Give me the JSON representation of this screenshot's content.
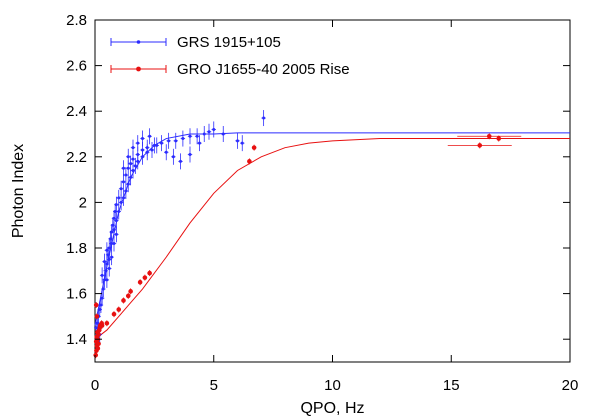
{
  "chart_data": {
    "type": "scatter",
    "xlabel": "QPO, Hz",
    "ylabel": "Photon Index",
    "xlim": [
      0,
      20
    ],
    "ylim": [
      1.3,
      2.8
    ],
    "x_ticks": [
      0,
      5,
      10,
      15,
      20
    ],
    "y_ticks": [
      1.4,
      1.6,
      1.8,
      2.0,
      2.2,
      2.4,
      2.6,
      2.8
    ],
    "x_tick_labels": [
      "0",
      "5",
      "10",
      "15",
      "20"
    ],
    "y_tick_labels": [
      "1.4",
      "1.6",
      "1.8",
      "2",
      "2.2",
      "2.4",
      "2.6",
      "2.8"
    ],
    "grid": false,
    "legend_position": "top-left",
    "series": [
      {
        "name": "GRS 1915+105",
        "color": "#2b2bff",
        "marker": "small-dot",
        "points": [
          [
            0.05,
            1.45
          ],
          [
            0.1,
            1.47
          ],
          [
            0.15,
            1.5
          ],
          [
            0.2,
            1.53
          ],
          [
            0.25,
            1.55
          ],
          [
            0.3,
            1.58
          ],
          [
            0.35,
            1.62
          ],
          [
            0.4,
            1.66
          ],
          [
            0.45,
            1.7
          ],
          [
            0.5,
            1.73
          ],
          [
            0.55,
            1.77
          ],
          [
            0.6,
            1.8
          ],
          [
            0.65,
            1.84
          ],
          [
            0.7,
            1.87
          ],
          [
            0.75,
            1.9
          ],
          [
            0.8,
            1.93
          ],
          [
            0.85,
            1.96
          ],
          [
            0.9,
            1.99
          ],
          [
            1.0,
            2.02
          ],
          [
            1.1,
            2.06
          ],
          [
            1.2,
            2.09
          ],
          [
            1.3,
            2.12
          ],
          [
            1.4,
            2.15
          ],
          [
            1.5,
            2.17
          ],
          [
            1.6,
            2.19
          ],
          [
            1.8,
            2.21
          ],
          [
            2.0,
            2.23
          ],
          [
            2.2,
            2.24
          ],
          [
            2.5,
            2.25
          ],
          [
            2.8,
            2.26
          ],
          [
            3.1,
            2.27
          ],
          [
            3.4,
            2.27
          ],
          [
            3.7,
            2.28
          ],
          [
            4.0,
            2.29
          ],
          [
            4.3,
            2.29
          ],
          [
            4.6,
            2.3
          ],
          [
            0.3,
            1.68
          ],
          [
            0.4,
            1.74
          ],
          [
            0.5,
            1.79
          ],
          [
            0.6,
            1.75
          ],
          [
            0.7,
            1.82
          ],
          [
            0.8,
            1.88
          ],
          [
            0.9,
            1.92
          ],
          [
            1.0,
            1.96
          ],
          [
            1.1,
            2.0
          ],
          [
            1.2,
            2.02
          ],
          [
            1.3,
            2.05
          ],
          [
            1.4,
            2.08
          ],
          [
            1.5,
            2.11
          ],
          [
            1.6,
            2.14
          ],
          [
            1.7,
            2.16
          ],
          [
            1.8,
            2.18
          ],
          [
            2.0,
            2.2
          ],
          [
            2.2,
            2.22
          ],
          [
            2.4,
            2.23
          ],
          [
            1.2,
            2.15
          ],
          [
            1.4,
            2.2
          ],
          [
            1.6,
            2.24
          ],
          [
            1.8,
            2.26
          ],
          [
            2.0,
            2.28
          ],
          [
            2.3,
            2.29
          ],
          [
            2.6,
            2.25
          ],
          [
            3.0,
            2.22
          ],
          [
            3.3,
            2.2
          ],
          [
            3.6,
            2.18
          ],
          [
            4.0,
            2.21
          ],
          [
            4.4,
            2.26
          ],
          [
            4.8,
            2.31
          ],
          [
            5.0,
            2.32
          ],
          [
            5.4,
            2.3
          ],
          [
            6.0,
            2.27
          ],
          [
            6.2,
            2.26
          ],
          [
            7.1,
            2.37
          ],
          [
            0.2,
            1.42
          ],
          [
            0.1,
            1.39
          ],
          [
            0.5,
            1.66
          ],
          [
            0.6,
            1.71
          ],
          [
            0.7,
            1.76
          ],
          [
            0.8,
            1.82
          ],
          [
            0.9,
            1.86
          ]
        ]
      },
      {
        "name": "GRO J1655-40 2005 Rise",
        "color": "#e81010",
        "marker": "dot",
        "points": [
          [
            0.03,
            1.33
          ],
          [
            0.06,
            1.35
          ],
          [
            0.08,
            1.37
          ],
          [
            0.1,
            1.38
          ],
          [
            0.12,
            1.4
          ],
          [
            0.15,
            1.42
          ],
          [
            0.18,
            1.44
          ],
          [
            0.2,
            1.45
          ],
          [
            0.22,
            1.46
          ],
          [
            0.25,
            1.46
          ],
          [
            0.28,
            1.47
          ],
          [
            0.05,
            1.39
          ],
          [
            0.07,
            1.41
          ],
          [
            0.1,
            1.43
          ],
          [
            0.12,
            1.36
          ],
          [
            0.15,
            1.38
          ],
          [
            0.05,
            1.55
          ],
          [
            0.08,
            1.5
          ],
          [
            0.3,
            1.46
          ],
          [
            0.5,
            1.47
          ],
          [
            0.8,
            1.51
          ],
          [
            1.0,
            1.53
          ],
          [
            1.2,
            1.57
          ],
          [
            1.4,
            1.59
          ],
          [
            1.5,
            1.61
          ],
          [
            1.9,
            1.65
          ],
          [
            2.1,
            1.67
          ],
          [
            2.3,
            1.69
          ],
          [
            6.5,
            2.18
          ],
          [
            6.7,
            2.24
          ],
          [
            16.2,
            2.25
          ],
          [
            16.6,
            2.29
          ],
          [
            17.0,
            2.28
          ]
        ]
      }
    ],
    "fits": [
      {
        "series": "GRS 1915+105",
        "color": "#2b2bff",
        "curve": [
          [
            0,
            1.46
          ],
          [
            0.5,
            1.72
          ],
          [
            1,
            1.96
          ],
          [
            1.5,
            2.11
          ],
          [
            2,
            2.2
          ],
          [
            2.5,
            2.25
          ],
          [
            3,
            2.28
          ],
          [
            4,
            2.3
          ],
          [
            5,
            2.3
          ],
          [
            6,
            2.305
          ],
          [
            10,
            2.305
          ],
          [
            15,
            2.305
          ],
          [
            20,
            2.305
          ]
        ]
      },
      {
        "series": "GRO J1655-40 2005 Rise",
        "color": "#e81010",
        "curve": [
          [
            0,
            1.4
          ],
          [
            0.5,
            1.44
          ],
          [
            1,
            1.5
          ],
          [
            1.5,
            1.56
          ],
          [
            2,
            1.62
          ],
          [
            3,
            1.76
          ],
          [
            4,
            1.91
          ],
          [
            5,
            2.04
          ],
          [
            6,
            2.14
          ],
          [
            7,
            2.2
          ],
          [
            8,
            2.24
          ],
          [
            9,
            2.26
          ],
          [
            10,
            2.27
          ],
          [
            12,
            2.28
          ],
          [
            15,
            2.28
          ],
          [
            20,
            2.28
          ]
        ]
      }
    ]
  }
}
